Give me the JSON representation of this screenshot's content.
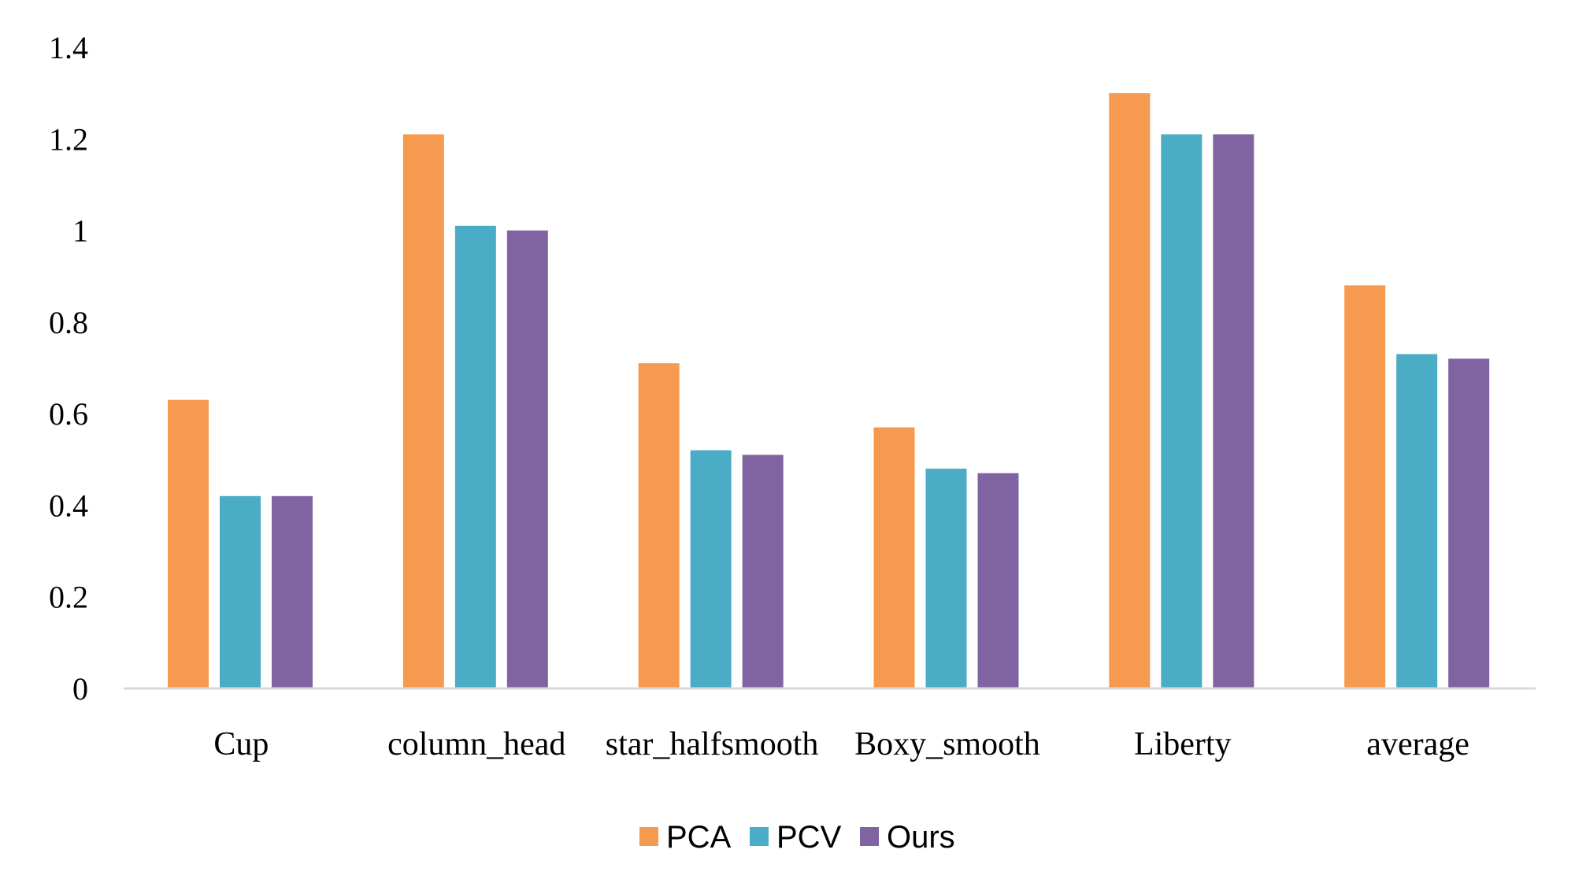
{
  "chart_data": {
    "type": "bar",
    "title": "",
    "xlabel": "",
    "ylabel": "",
    "ylim": [
      0,
      1.4
    ],
    "yticks": [
      "0",
      "0.2",
      "0.4",
      "0.6",
      "0.8",
      "1",
      "1.2",
      "1.4"
    ],
    "grid": false,
    "legend_position": "bottom",
    "categories": [
      "Cup",
      "column_head",
      "star_halfsmooth",
      "Boxy_smooth",
      "Liberty",
      "average"
    ],
    "series": [
      {
        "name": "PCA",
        "color": "#F59A4E",
        "values": [
          0.63,
          1.21,
          0.71,
          0.57,
          1.3,
          0.88
        ]
      },
      {
        "name": "PCV",
        "color": "#4BACC6",
        "values": [
          0.42,
          1.01,
          0.52,
          0.48,
          1.21,
          0.73
        ]
      },
      {
        "name": "Ours",
        "color": "#8064A2",
        "values": [
          0.42,
          1.0,
          0.51,
          0.47,
          1.21,
          0.72
        ]
      }
    ],
    "axis_color": "#D9D9D9"
  }
}
